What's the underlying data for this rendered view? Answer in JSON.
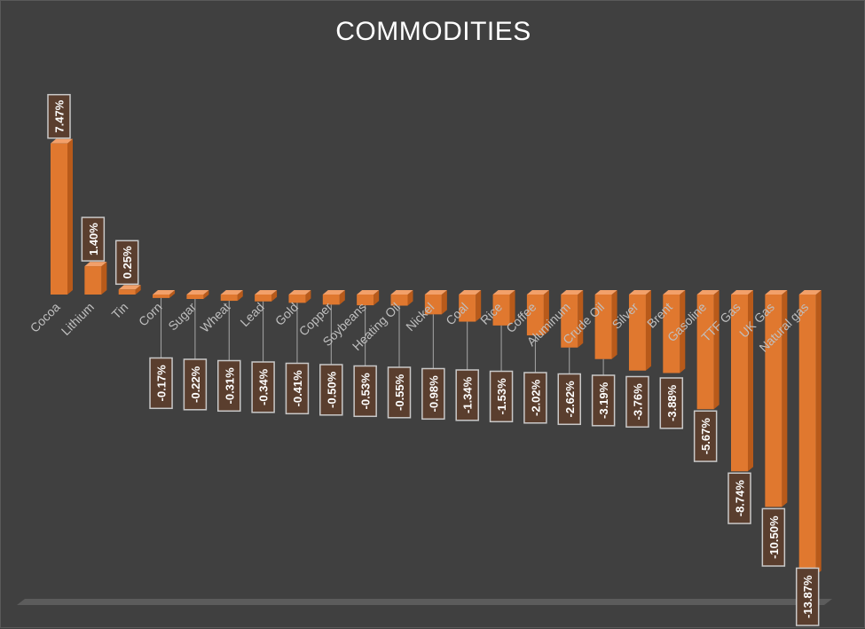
{
  "chart_data": {
    "type": "bar",
    "title": "COMMODITIES",
    "categories": [
      "Cocoa",
      "Lithium",
      "Tin",
      "Corn",
      "Sugar",
      "Wheat",
      "Lead",
      "Gold",
      "Copper",
      "Soybeans",
      "Heating Oil",
      "Nickel",
      "Coal",
      "Rice",
      "Coffee",
      "Aluminum",
      "Crude Oil",
      "Silver",
      "Brent",
      "Gasoline",
      "TTF Gas",
      "UK Gas",
      "Natural gas"
    ],
    "values": [
      7.47,
      1.4,
      0.25,
      -0.17,
      -0.22,
      -0.31,
      -0.34,
      -0.41,
      -0.5,
      -0.53,
      -0.55,
      -0.98,
      -1.34,
      -1.53,
      -2.02,
      -2.62,
      -3.19,
      -3.76,
      -3.88,
      -5.67,
      -8.74,
      -10.5,
      -13.87
    ],
    "value_labels": [
      "7.47%",
      "1.40%",
      "0.25%",
      "-0.17%",
      "-0.22%",
      "-0.31%",
      "-0.34%",
      "-0.41%",
      "-0.50%",
      "-0.53%",
      "-0.55%",
      "-0.98%",
      "-1.34%",
      "-1.53%",
      "-2.02%",
      "-2.62%",
      "-3.19%",
      "-3.76%",
      "-3.88%",
      "-5.67%",
      "-8.74%",
      "-10.50%",
      "-13.87%"
    ],
    "unit": "%",
    "grid": false,
    "legend": "none",
    "style": "3d-column",
    "colors": {
      "bar_front": "#E0782F",
      "bar_side": "#B85A1A",
      "bar_top": "#F2A06A",
      "label_box": "#5A3E2E",
      "label_border": "#C9C9C9",
      "background": "#404040"
    }
  }
}
